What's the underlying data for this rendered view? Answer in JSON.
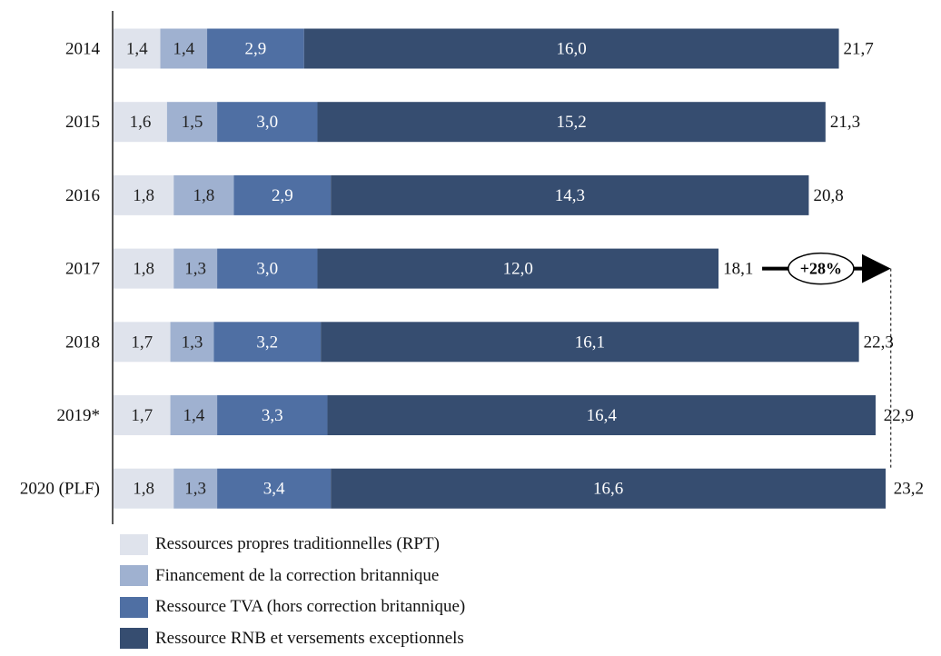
{
  "chart_data": {
    "type": "bar",
    "orientation": "horizontal",
    "stacked": true,
    "categories": [
      "2014",
      "2015",
      "2016",
      "2017",
      "2018",
      "2019*",
      "2020 (PLF)"
    ],
    "series": [
      {
        "name": "Ressources propres traditionnelles (RPT)",
        "color": "#dfe3ec",
        "values": [
          1.4,
          1.6,
          1.8,
          1.8,
          1.7,
          1.7,
          1.8
        ],
        "labels": [
          "1,4",
          "1,6",
          "1,8",
          "1,8",
          "1,7",
          "1,7",
          "1,8"
        ]
      },
      {
        "name": "Financement de la correction britannique",
        "color": "#9fb1d0",
        "values": [
          1.4,
          1.5,
          1.8,
          1.3,
          1.3,
          1.4,
          1.3
        ],
        "labels": [
          "1,4",
          "1,5",
          "1,8",
          "1,3",
          "1,3",
          "1,4",
          "1,3"
        ]
      },
      {
        "name": "Ressource TVA (hors correction britannique)",
        "color": "#4f6fa3",
        "values": [
          2.9,
          3.0,
          2.9,
          3.0,
          3.2,
          3.3,
          3.4
        ],
        "labels": [
          "2,9",
          "3,0",
          "2,9",
          "3,0",
          "3,2",
          "3,3",
          "3,4"
        ]
      },
      {
        "name": "Ressource RNB et versements exceptionnels",
        "color": "#364d70",
        "values": [
          16.0,
          15.2,
          14.3,
          12.0,
          16.1,
          16.4,
          16.6
        ],
        "labels": [
          "16,0",
          "15,2",
          "14,3",
          "12,0",
          "16,1",
          "16,4",
          "16,6"
        ]
      }
    ],
    "totals": [
      21.7,
      21.3,
      20.8,
      18.1,
      22.3,
      22.9,
      23.2
    ],
    "total_labels": [
      "21,7",
      "21,3",
      "20,8",
      "18,1",
      "22,3",
      "22,9",
      "23,2"
    ],
    "annotation": {
      "text": "+28%",
      "from_category": "2017",
      "to_category": "2020 (PLF)"
    },
    "legend_position": "bottom-left",
    "grid": false
  }
}
